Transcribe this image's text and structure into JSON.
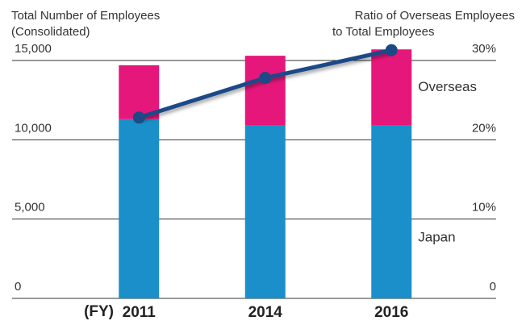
{
  "chart_data": {
    "type": "bar",
    "stacked": true,
    "y_label": [
      "Total Number of Employees",
      "(Consolidated)"
    ],
    "y2_label": [
      "Ratio of Overseas Employees",
      "to Total Employees"
    ],
    "x_label": "(FY)",
    "categories": [
      "2011",
      "2014",
      "2016"
    ],
    "series": [
      {
        "name": "Japan",
        "color": "#1a8fc9",
        "values": [
          11300,
          10900,
          10900
        ]
      },
      {
        "name": "Overseas",
        "color": "#e6177a",
        "values": [
          3400,
          4400,
          4800
        ]
      },
      {
        "type": "line",
        "axis": "y2",
        "color": "#1b4a87",
        "values": [
          22.8,
          27.8,
          31.3
        ]
      }
    ],
    "ylim": [
      0,
      15000
    ],
    "yticks": [
      0,
      {
        "value": 5000,
        "label": "5,000"
      },
      {
        "value": 10000,
        "label": "10,000"
      },
      {
        "value": 15000,
        "label": "15,000"
      }
    ],
    "y2lim": [
      0,
      30
    ],
    "y2ticks": [
      0,
      {
        "value": 10,
        "label": "10%"
      },
      {
        "value": 20,
        "label": "20%"
      },
      {
        "value": 30,
        "label": "30%"
      }
    ],
    "grid": true
  }
}
